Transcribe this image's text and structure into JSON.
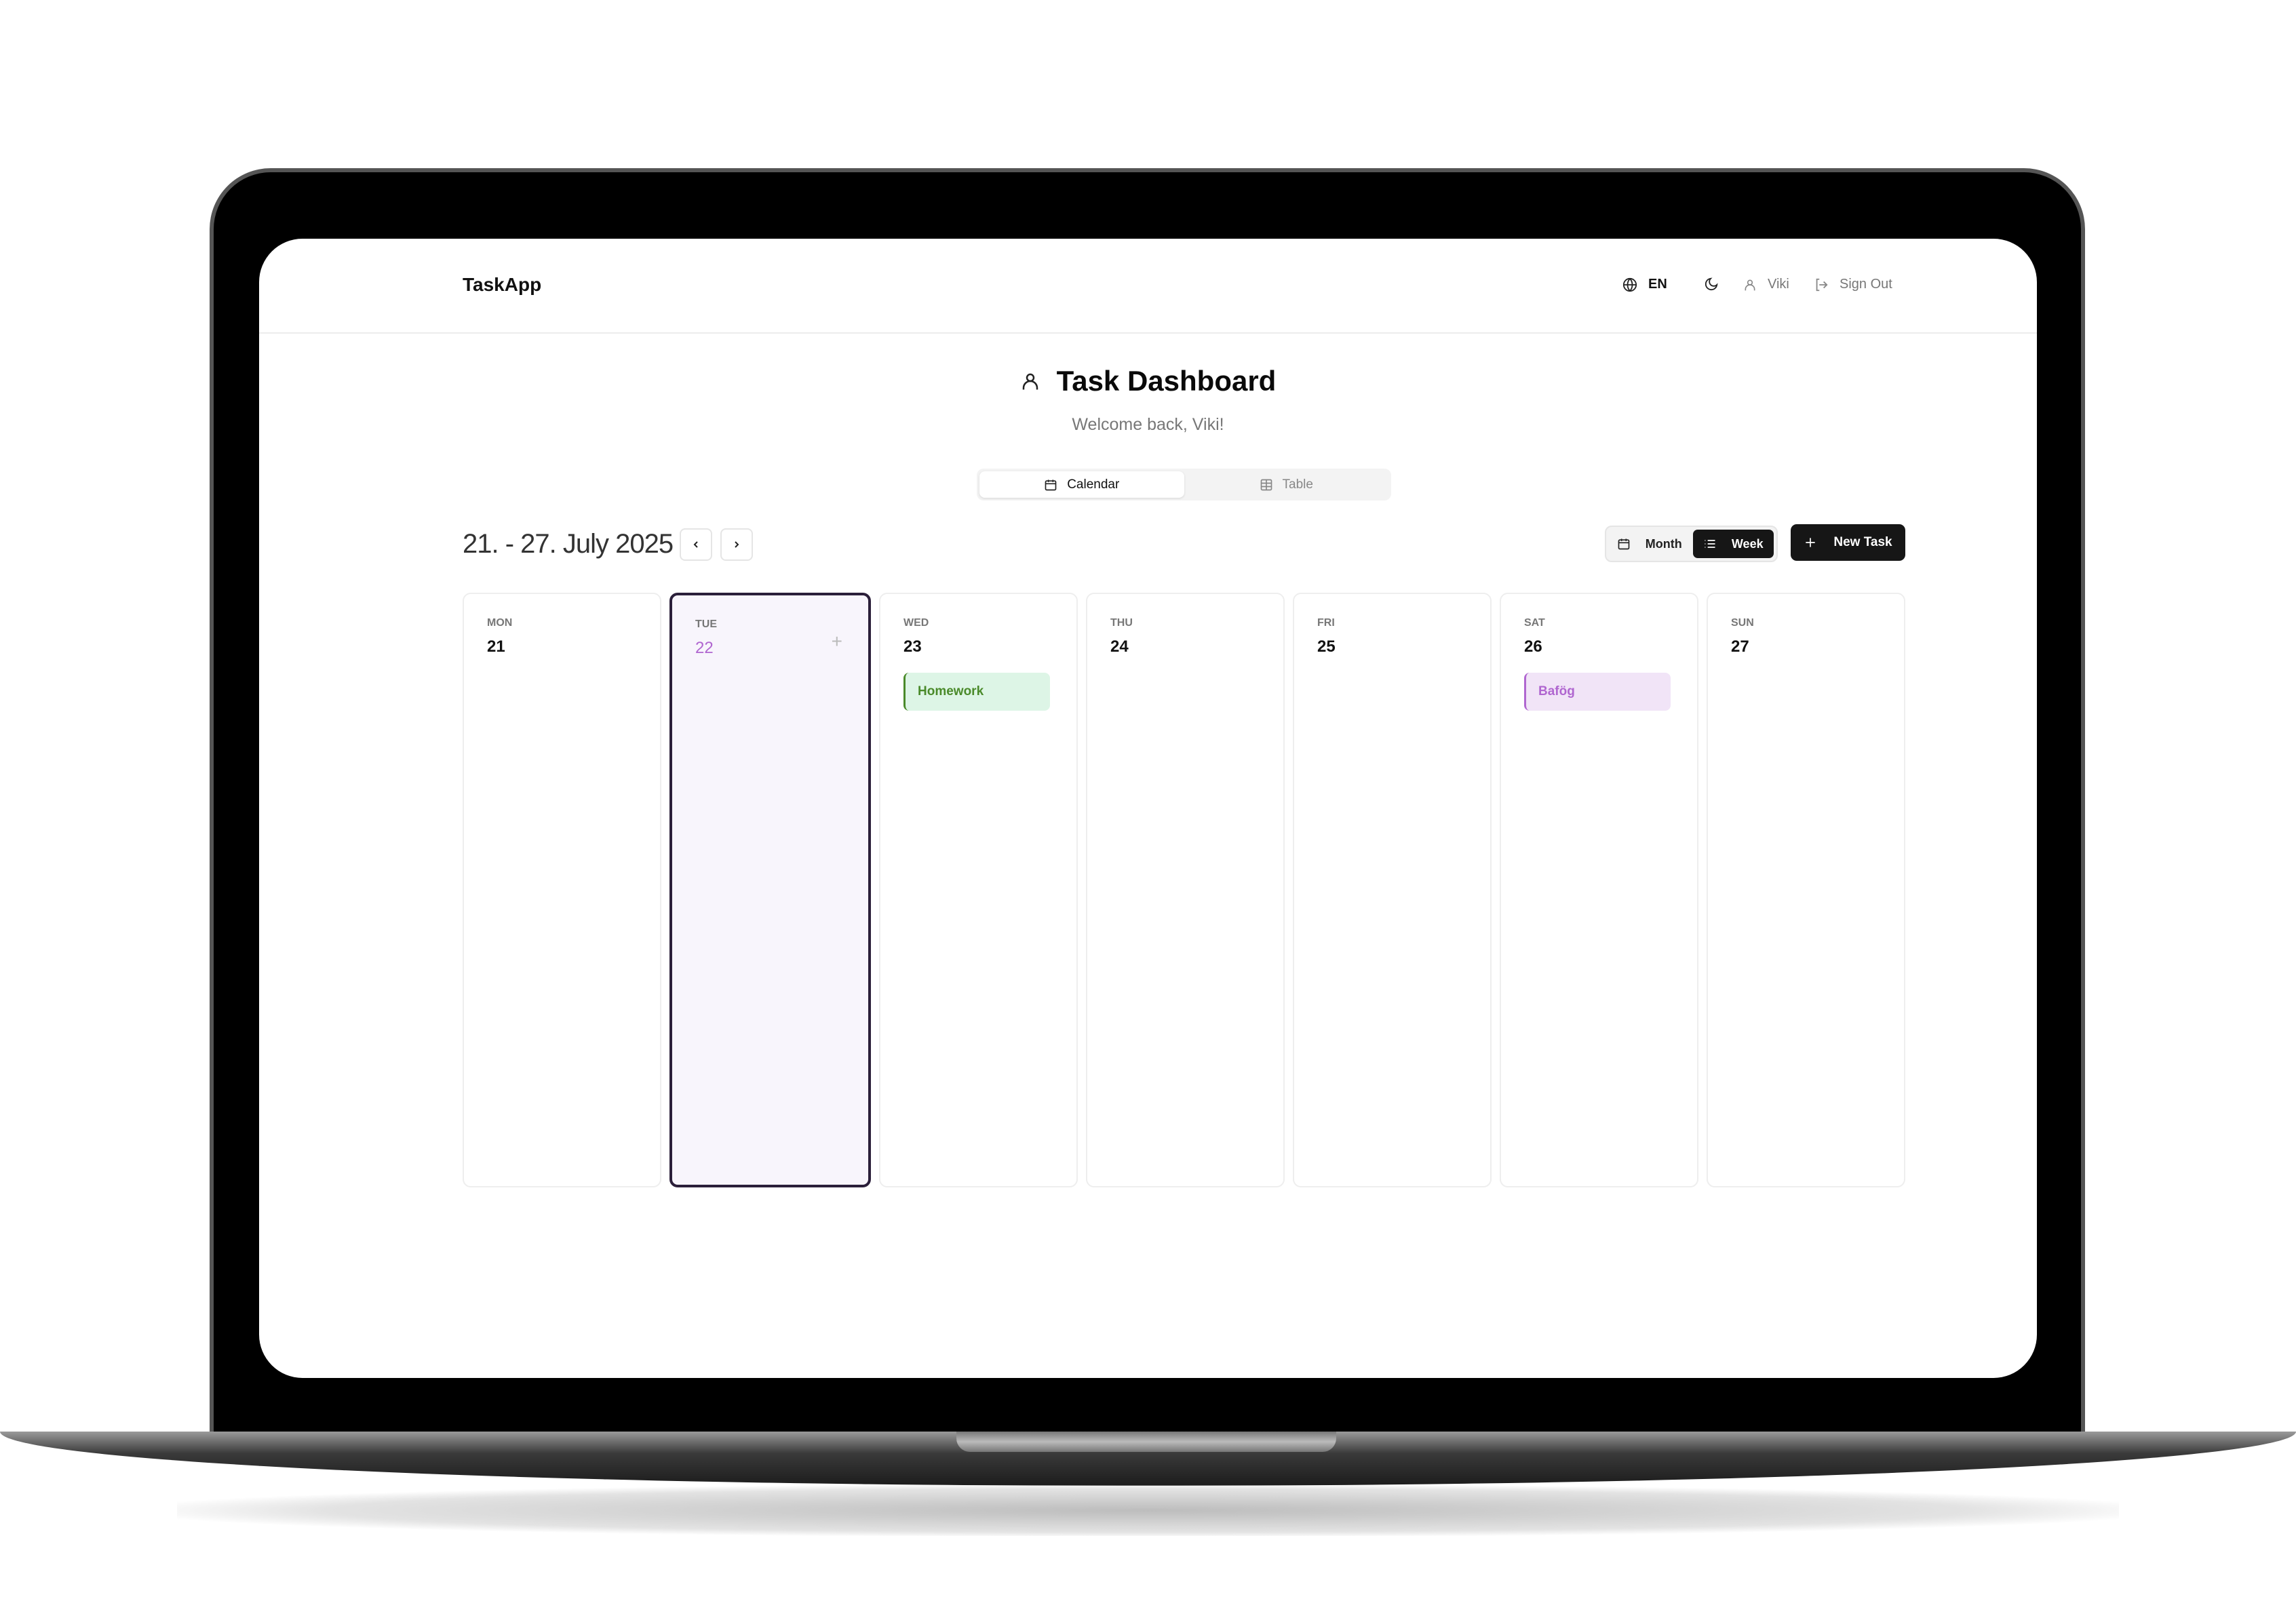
{
  "header": {
    "brand": "TaskApp",
    "language": "EN",
    "user": "Viki",
    "sign_out": "Sign Out"
  },
  "main": {
    "title": "Task Dashboard",
    "welcome": "Welcome back, Viki!",
    "tabs": [
      {
        "label": "Calendar",
        "active": true
      },
      {
        "label": "Table",
        "active": false
      }
    ],
    "range": "21. - 27. July 2025",
    "view_toggle": [
      {
        "label": "Month",
        "active": false
      },
      {
        "label": "Week",
        "active": true
      }
    ],
    "new_task": "New Task"
  },
  "days": [
    {
      "name": "MON",
      "num": "21"
    },
    {
      "name": "TUE",
      "num": "22",
      "today": true
    },
    {
      "name": "WED",
      "num": "23",
      "event": "Homework"
    },
    {
      "name": "THU",
      "num": "24"
    },
    {
      "name": "FRI",
      "num": "25"
    },
    {
      "name": "SAT",
      "num": "26",
      "event": "Bafög"
    },
    {
      "name": "SUN",
      "num": "27"
    }
  ],
  "colors": {
    "today_accent": "#b066d0",
    "homework_bg": "#ddf5e6",
    "homework_text": "#4a8a2a",
    "bafog_bg": "#f1e4f7",
    "bafog_text": "#b066d0"
  }
}
